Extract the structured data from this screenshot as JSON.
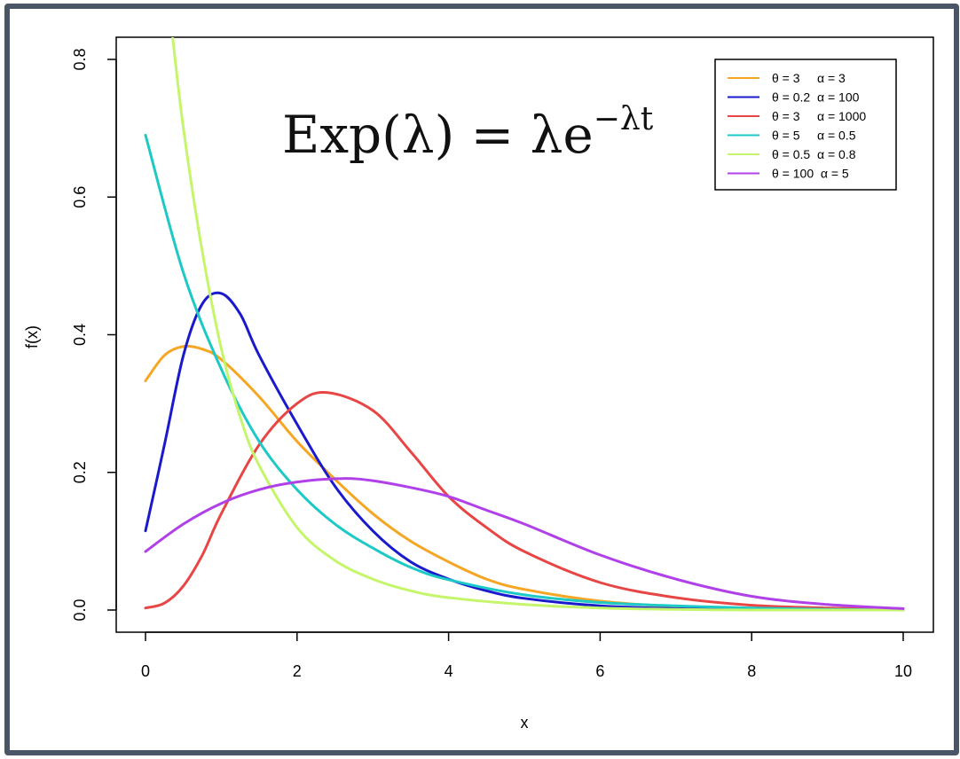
{
  "chart_data": {
    "type": "line",
    "title": "",
    "annotation": {
      "formula_main": "Exp(λ) = λe",
      "formula_sup": "−λt"
    },
    "xlabel": "x",
    "ylabel": "f(x)",
    "xlim": [
      0,
      10
    ],
    "ylim": [
      0,
      0.8
    ],
    "xticks": [
      0,
      2,
      4,
      6,
      8,
      10
    ],
    "yticks": [
      0.0,
      0.2,
      0.4,
      0.6,
      0.8
    ],
    "xtick_labels": [
      "0",
      "2",
      "4",
      "6",
      "8",
      "10"
    ],
    "ytick_labels": [
      "0.0",
      "0.2",
      "0.4",
      "0.6",
      "0.8"
    ],
    "grid": false,
    "legend_position": "top-right",
    "series": [
      {
        "name": "θ = 3     α = 3",
        "color": "#f5a623",
        "x": [
          0,
          0.25,
          0.5,
          0.75,
          1,
          1.5,
          2,
          2.5,
          3,
          3.5,
          4,
          4.5,
          5,
          6,
          7,
          8,
          9,
          10
        ],
        "y": [
          0.333,
          0.37,
          0.383,
          0.379,
          0.364,
          0.31,
          0.245,
          0.19,
          0.14,
          0.1,
          0.07,
          0.045,
          0.03,
          0.013,
          0.005,
          0.002,
          0.001,
          0.0
        ]
      },
      {
        "name": "θ = 0.2  α = 100",
        "color": "#1a1acc",
        "x": [
          0,
          0.25,
          0.5,
          0.75,
          1,
          1.25,
          1.5,
          2,
          2.5,
          3,
          3.5,
          4,
          4.5,
          5,
          6,
          7,
          8,
          9,
          10
        ],
        "y": [
          0.115,
          0.24,
          0.37,
          0.445,
          0.46,
          0.43,
          0.37,
          0.27,
          0.18,
          0.115,
          0.07,
          0.045,
          0.028,
          0.017,
          0.006,
          0.002,
          0.001,
          0.0,
          0.0
        ]
      },
      {
        "name": "θ = 3     α = 1000",
        "color": "#e84545",
        "x": [
          0,
          0.25,
          0.5,
          0.75,
          1,
          1.5,
          2,
          2.4,
          3,
          3.5,
          4,
          4.5,
          5,
          6,
          7,
          8,
          9,
          10
        ],
        "y": [
          0.003,
          0.01,
          0.035,
          0.08,
          0.14,
          0.24,
          0.3,
          0.316,
          0.29,
          0.23,
          0.165,
          0.12,
          0.085,
          0.04,
          0.018,
          0.007,
          0.003,
          0.001
        ]
      },
      {
        "name": "θ = 5     α = 0.5",
        "color": "#1cc9c6",
        "x": [
          0,
          0.5,
          1,
          1.5,
          2,
          2.5,
          3,
          3.5,
          4,
          5,
          6,
          7,
          8,
          9,
          10
        ],
        "y": [
          0.69,
          0.49,
          0.35,
          0.245,
          0.175,
          0.125,
          0.09,
          0.062,
          0.044,
          0.022,
          0.011,
          0.006,
          0.003,
          0.001,
          0.0
        ]
      },
      {
        "name": "θ = 0.5  α = 0.8",
        "color": "#c4f56a",
        "x": [
          0.34,
          0.5,
          0.75,
          1,
          1.25,
          1.5,
          2,
          2.5,
          3,
          3.5,
          4,
          5,
          6,
          7,
          8,
          9,
          10
        ],
        "y": [
          0.85,
          0.7,
          0.52,
          0.38,
          0.28,
          0.21,
          0.12,
          0.072,
          0.045,
          0.028,
          0.018,
          0.008,
          0.003,
          0.001,
          0.0,
          0.0,
          0.0
        ]
      },
      {
        "name": "θ = 100  α = 5",
        "color": "#b040e8",
        "x": [
          0,
          0.5,
          1,
          1.5,
          2,
          2.6,
          3,
          3.5,
          4,
          4.5,
          5,
          6,
          7,
          8,
          9,
          10
        ],
        "y": [
          0.085,
          0.125,
          0.155,
          0.175,
          0.186,
          0.191,
          0.188,
          0.178,
          0.165,
          0.145,
          0.125,
          0.08,
          0.045,
          0.02,
          0.008,
          0.002
        ]
      }
    ]
  }
}
